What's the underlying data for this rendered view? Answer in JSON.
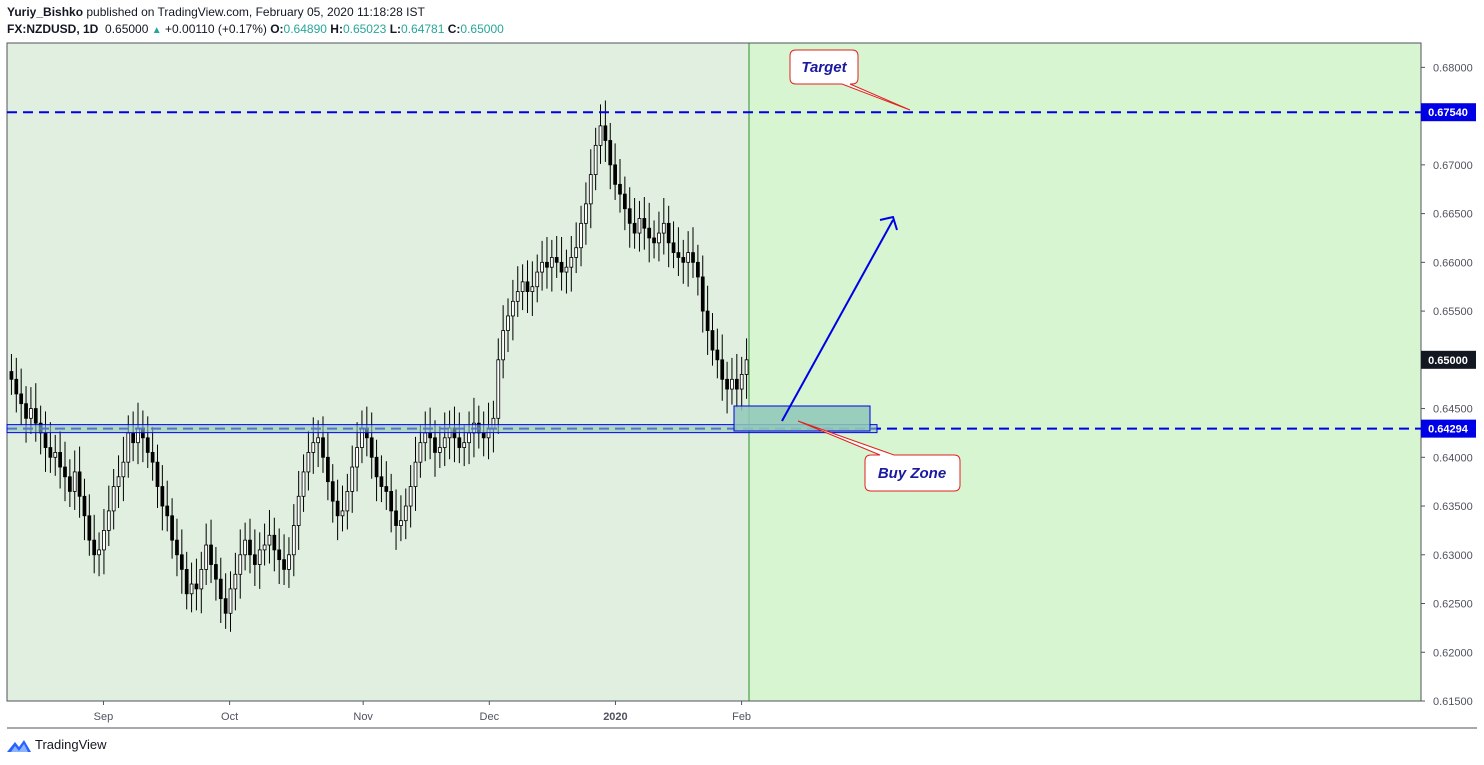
{
  "header": {
    "author": "Yuriy_Bishko",
    "published": "published on TradingView.com, February 05, 2020 11:18:28 IST",
    "symbol": "FX:NZDUSD, 1D",
    "price": "0.65000",
    "change": "+0.00110 (+0.17%)",
    "o_label": "O:",
    "o": "0.64890",
    "h_label": "H:",
    "h": "0.65023",
    "l_label": "L:",
    "l": "0.64781",
    "c_label": "C:",
    "c": "0.65000"
  },
  "footer": {
    "brand": "TradingView"
  },
  "colors": {
    "history_bg": "#e0efe0",
    "forecast_bg": "#d6f5d0",
    "line": "#0000e6",
    "zone": "#8fc7b8",
    "callout_border": "#e02020",
    "callout_text": "#1a1aa0"
  },
  "chart_data": {
    "type": "candlestick",
    "symbol": "FX:NZDUSD",
    "interval": "1D",
    "ylim": [
      0.615,
      0.6825
    ],
    "y_ticks": [
      "0.61500",
      "0.62000",
      "0.62500",
      "0.63000",
      "0.63500",
      "0.64000",
      "0.64500",
      "0.65000",
      "0.65500",
      "0.66000",
      "0.66500",
      "0.67000",
      "0.67500",
      "0.68000"
    ],
    "x_ticks": [
      "Sep",
      "Oct",
      "Nov",
      "Dec",
      "2020",
      "Feb"
    ],
    "last_price_label": "0.65000",
    "levels": [
      {
        "name": "Target",
        "value": 0.6754,
        "label": "0.67540"
      },
      {
        "name": "Buy Zone",
        "value": 0.64294,
        "label": "0.64294"
      }
    ],
    "annotations": [
      "Target",
      "Buy Zone"
    ],
    "closes": [
      0.648,
      0.6465,
      0.6455,
      0.644,
      0.645,
      0.6435,
      0.6425,
      0.641,
      0.64,
      0.6405,
      0.639,
      0.638,
      0.6365,
      0.6385,
      0.636,
      0.634,
      0.6315,
      0.63,
      0.6305,
      0.6325,
      0.6345,
      0.637,
      0.638,
      0.6395,
      0.6425,
      0.6415,
      0.643,
      0.642,
      0.6405,
      0.6395,
      0.637,
      0.635,
      0.634,
      0.6315,
      0.63,
      0.6285,
      0.626,
      0.627,
      0.6265,
      0.6285,
      0.631,
      0.629,
      0.6275,
      0.6255,
      0.624,
      0.6265,
      0.628,
      0.63,
      0.6315,
      0.63,
      0.629,
      0.6305,
      0.631,
      0.632,
      0.6305,
      0.6295,
      0.6285,
      0.63,
      0.633,
      0.636,
      0.6385,
      0.6405,
      0.6415,
      0.642,
      0.64,
      0.6375,
      0.6355,
      0.634,
      0.6345,
      0.6365,
      0.639,
      0.641,
      0.643,
      0.642,
      0.64,
      0.638,
      0.637,
      0.6365,
      0.6345,
      0.633,
      0.6335,
      0.635,
      0.637,
      0.6395,
      0.6415,
      0.6425,
      0.642,
      0.6405,
      0.641,
      0.642,
      0.643,
      0.642,
      0.641,
      0.6415,
      0.6425,
      0.6435,
      0.6425,
      0.642,
      0.643,
      0.644,
      0.65,
      0.653,
      0.6545,
      0.656,
      0.657,
      0.658,
      0.657,
      0.6575,
      0.659,
      0.66,
      0.6595,
      0.6605,
      0.66,
      0.659,
      0.6595,
      0.6605,
      0.6615,
      0.664,
      0.666,
      0.669,
      0.672,
      0.674,
      0.6725,
      0.67,
      0.668,
      0.667,
      0.6655,
      0.664,
      0.663,
      0.6645,
      0.6635,
      0.6625,
      0.662,
      0.663,
      0.664,
      0.662,
      0.661,
      0.6605,
      0.66,
      0.661,
      0.66,
      0.6585,
      0.655,
      0.653,
      0.651,
      0.65,
      0.648,
      0.647,
      0.648,
      0.647,
      0.6485,
      0.65
    ]
  }
}
